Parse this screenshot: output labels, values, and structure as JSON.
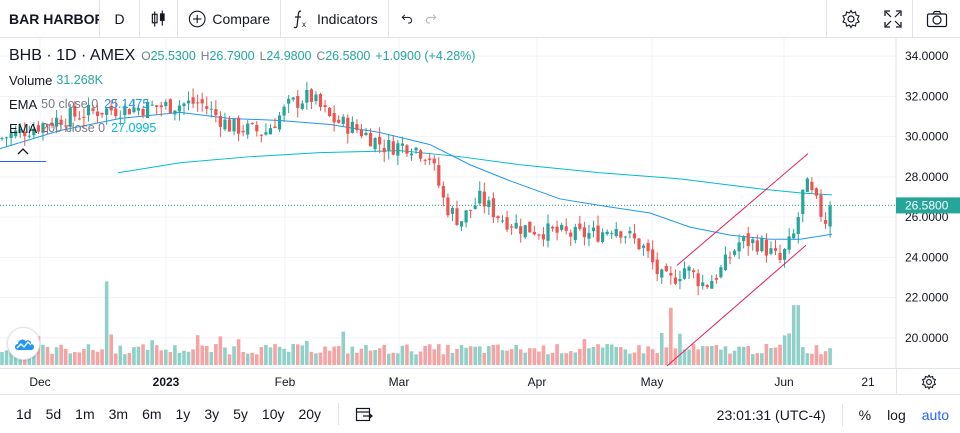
{
  "toolbar": {
    "symbol": "BAR HARBOR",
    "interval": "D",
    "compare_label": "Compare",
    "indicators_label": "Indicators"
  },
  "legend": {
    "title": "BHB · 1D · AMEX",
    "open_label": "O",
    "open": "25.5300",
    "high_label": "H",
    "high": "26.7900",
    "low_label": "L",
    "low": "24.9800",
    "close_label": "C",
    "close": "26.5800",
    "change": "+1.0900 (+4.28%)",
    "volume_name": "Volume",
    "volume": "31.268K",
    "ema50_name": "EMA",
    "ema50_params": "50 close 0",
    "ema50_value": "25.1475",
    "ema200_name": "EMA",
    "ema200_params": "200 close 0",
    "ema200_value": "27.0995"
  },
  "colors": {
    "up": "#26a69a",
    "down": "#ef5350",
    "up_vol": "#8fd0c8",
    "down_vol": "#f5a3a3",
    "ema50": "#2196f3",
    "ema200": "#00bcd4",
    "trend": "#e91e63",
    "accent": "#2962ff"
  },
  "chart_data": {
    "type": "candlestick",
    "price_axis": {
      "ticks": [
        "34.0000",
        "32.0000",
        "30.0000",
        "28.0000",
        "26.0000",
        "24.0000",
        "22.0000",
        "20.0000"
      ],
      "ylim": [
        18.5,
        34.5
      ]
    },
    "last_price": "26.5800",
    "time_axis": {
      "labels": [
        "Dec",
        "2023",
        "Feb",
        "Mar",
        "Apr",
        "May",
        "Jun",
        "21"
      ]
    },
    "last_bar": {
      "open": 25.53,
      "high": 26.79,
      "low": 24.98,
      "close": 26.58,
      "volume": "31.268K"
    },
    "ema50_last": 25.1475,
    "ema200_last": 27.0995
  },
  "bottom": {
    "ranges": [
      "1d",
      "5d",
      "1m",
      "3m",
      "6m",
      "1y",
      "3y",
      "5y",
      "10y",
      "20y"
    ],
    "clock": "23:01:31 (UTC-4)",
    "percent": "%",
    "log": "log",
    "auto": "auto"
  }
}
